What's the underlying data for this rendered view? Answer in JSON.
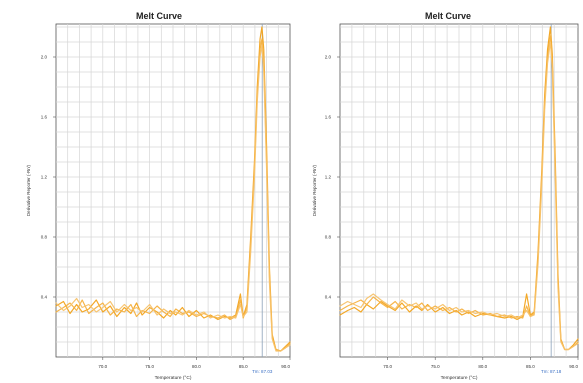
{
  "colors": {
    "curve_primary": "#f2a31b",
    "curve_light": "#f7c26a",
    "grid": "#d6d6d6",
    "axis": "#555555",
    "tm_line": "#8aa0b8",
    "tm_label": "#3a6fc4"
  },
  "chart_data": [
    {
      "type": "line",
      "title": "Melt Curve",
      "xlabel": "Temperature (°C)",
      "ylabel": "Derivative Reporter (-Rn')",
      "xlim": [
        65.0,
        90.0
      ],
      "ylim": [
        0.0,
        2.22
      ],
      "xticks": [
        70.0,
        75.0,
        80.0,
        85.0,
        90.0
      ],
      "xtick_labels": [
        "70.0",
        "75.0",
        "80.0",
        "85.0",
        "90.0"
      ],
      "yticks": [
        0.4,
        0.8,
        1.2,
        1.6,
        2.0
      ],
      "ytick_labels": [
        "0.4",
        "0.8",
        "1.2",
        "1.6",
        "2.0"
      ],
      "tm_label": "Tm: 87.03",
      "tm_value": 87.03,
      "grid": true,
      "series": [
        {
          "color": "#f2a31b",
          "x": [
            65.0,
            65.8,
            66.5,
            67.2,
            67.8,
            68.5,
            69.3,
            70.0,
            70.8,
            71.5,
            72.3,
            73.0,
            73.6,
            74.2,
            75.0,
            75.8,
            76.5,
            77.2,
            77.8,
            78.5,
            79.2,
            80.0,
            80.8,
            81.5,
            82.3,
            83.0,
            83.6,
            84.2,
            84.7,
            85.0,
            85.4,
            85.8,
            86.2,
            86.5,
            86.8,
            87.0,
            87.2,
            87.5,
            87.8,
            88.1,
            88.5,
            89.0,
            89.5,
            90.0
          ],
          "y": [
            0.34,
            0.37,
            0.29,
            0.35,
            0.3,
            0.32,
            0.38,
            0.3,
            0.34,
            0.27,
            0.33,
            0.29,
            0.36,
            0.28,
            0.33,
            0.3,
            0.26,
            0.31,
            0.28,
            0.33,
            0.27,
            0.31,
            0.26,
            0.28,
            0.25,
            0.27,
            0.26,
            0.28,
            0.42,
            0.27,
            0.35,
            0.8,
            1.3,
            1.8,
            2.12,
            2.2,
            2.05,
            1.4,
            0.6,
            0.15,
            0.05,
            0.04,
            0.07,
            0.1
          ]
        },
        {
          "color": "#f5b140",
          "x": [
            65.0,
            65.8,
            66.5,
            67.2,
            67.8,
            68.5,
            69.3,
            70.0,
            70.8,
            71.5,
            72.3,
            73.0,
            73.6,
            74.2,
            75.0,
            75.8,
            76.5,
            77.2,
            77.8,
            78.5,
            79.2,
            80.0,
            80.8,
            81.5,
            82.3,
            83.0,
            83.6,
            84.2,
            84.7,
            85.0,
            85.4,
            85.8,
            86.2,
            86.5,
            86.8,
            87.0,
            87.2,
            87.5,
            87.8,
            88.1,
            88.5,
            89.0,
            89.5,
            90.0
          ],
          "y": [
            0.3,
            0.33,
            0.36,
            0.31,
            0.38,
            0.29,
            0.33,
            0.36,
            0.28,
            0.32,
            0.3,
            0.35,
            0.27,
            0.31,
            0.29,
            0.34,
            0.3,
            0.27,
            0.32,
            0.29,
            0.3,
            0.27,
            0.29,
            0.27,
            0.26,
            0.28,
            0.25,
            0.27,
            0.38,
            0.26,
            0.33,
            0.75,
            1.25,
            1.75,
            2.05,
            2.12,
            1.95,
            1.3,
            0.55,
            0.13,
            0.05,
            0.04,
            0.06,
            0.09
          ]
        },
        {
          "color": "#f7c26a",
          "x": [
            65.0,
            65.8,
            66.5,
            67.2,
            67.8,
            68.5,
            69.3,
            70.0,
            70.8,
            71.5,
            72.3,
            73.0,
            73.6,
            74.2,
            75.0,
            75.8,
            76.5,
            77.2,
            77.8,
            78.5,
            79.2,
            80.0,
            80.8,
            81.5,
            82.3,
            83.0,
            83.6,
            84.2,
            84.7,
            85.0,
            85.4,
            85.8,
            86.2,
            86.5,
            86.8,
            87.0,
            87.2,
            87.5,
            87.8,
            88.1,
            88.5,
            89.0,
            89.5,
            90.0
          ],
          "y": [
            0.36,
            0.31,
            0.34,
            0.39,
            0.33,
            0.35,
            0.3,
            0.33,
            0.37,
            0.3,
            0.35,
            0.31,
            0.33,
            0.3,
            0.35,
            0.28,
            0.32,
            0.29,
            0.3,
            0.28,
            0.31,
            0.28,
            0.3,
            0.26,
            0.28,
            0.26,
            0.27,
            0.26,
            0.35,
            0.27,
            0.3,
            0.7,
            1.2,
            1.7,
            2.0,
            2.08,
            1.9,
            1.25,
            0.5,
            0.12,
            0.04,
            0.04,
            0.06,
            0.08
          ]
        }
      ]
    },
    {
      "type": "line",
      "title": "Melt Curve",
      "xlabel": "Temperature (°C)",
      "ylabel": "Derivative Reporter (-Rn')",
      "xlim": [
        65.0,
        90.0
      ],
      "ylim": [
        0.0,
        2.22
      ],
      "xticks": [
        70.0,
        75.0,
        80.0,
        85.0,
        90.0
      ],
      "xtick_labels": [
        "70.0",
        "75.0",
        "80.0",
        "85.0",
        "90.0"
      ],
      "yticks": [
        0.4,
        0.8,
        1.2,
        1.6,
        2.0
      ],
      "ytick_labels": [
        "0.4",
        "0.8",
        "1.2",
        "1.6",
        "2.0"
      ],
      "tm_label": "Tm: 87.18",
      "tm_value": 87.18,
      "grid": true,
      "series": [
        {
          "color": "#f2a31b",
          "x": [
            65.0,
            65.8,
            66.5,
            67.2,
            67.8,
            68.5,
            69.3,
            70.0,
            70.8,
            71.5,
            72.3,
            73.0,
            73.6,
            74.2,
            75.0,
            75.8,
            76.5,
            77.2,
            77.8,
            78.5,
            79.2,
            80.0,
            80.8,
            81.5,
            82.3,
            83.0,
            83.6,
            84.2,
            84.6,
            85.0,
            85.4,
            85.8,
            86.2,
            86.5,
            86.8,
            87.1,
            87.3,
            87.6,
            87.9,
            88.2,
            88.6,
            89.0,
            89.5,
            90.0
          ],
          "y": [
            0.28,
            0.31,
            0.33,
            0.3,
            0.35,
            0.32,
            0.37,
            0.34,
            0.31,
            0.36,
            0.3,
            0.34,
            0.31,
            0.35,
            0.3,
            0.33,
            0.29,
            0.31,
            0.28,
            0.3,
            0.27,
            0.29,
            0.28,
            0.27,
            0.26,
            0.27,
            0.25,
            0.27,
            0.42,
            0.28,
            0.3,
            0.7,
            1.25,
            1.75,
            2.05,
            2.2,
            2.02,
            1.35,
            0.55,
            0.12,
            0.05,
            0.05,
            0.08,
            0.12
          ]
        },
        {
          "color": "#f5b140",
          "x": [
            65.0,
            65.8,
            66.5,
            67.2,
            67.8,
            68.5,
            69.3,
            70.0,
            70.8,
            71.5,
            72.3,
            73.0,
            73.6,
            74.2,
            75.0,
            75.8,
            76.5,
            77.2,
            77.8,
            78.5,
            79.2,
            80.0,
            80.8,
            81.5,
            82.3,
            83.0,
            83.6,
            84.2,
            84.6,
            85.0,
            85.4,
            85.8,
            86.2,
            86.5,
            86.8,
            87.1,
            87.3,
            87.6,
            87.9,
            88.2,
            88.6,
            89.0,
            89.5,
            90.0
          ],
          "y": [
            0.31,
            0.34,
            0.36,
            0.38,
            0.35,
            0.4,
            0.36,
            0.33,
            0.37,
            0.32,
            0.35,
            0.33,
            0.36,
            0.31,
            0.34,
            0.31,
            0.33,
            0.3,
            0.32,
            0.29,
            0.31,
            0.28,
            0.29,
            0.27,
            0.28,
            0.26,
            0.27,
            0.26,
            0.34,
            0.27,
            0.29,
            0.66,
            1.2,
            1.7,
            2.0,
            2.14,
            1.96,
            1.28,
            0.5,
            0.11,
            0.05,
            0.05,
            0.07,
            0.1
          ]
        },
        {
          "color": "#f7c26a",
          "x": [
            65.0,
            65.8,
            66.5,
            67.2,
            67.8,
            68.5,
            69.3,
            70.0,
            70.8,
            71.5,
            72.3,
            73.0,
            73.6,
            74.2,
            75.0,
            75.8,
            76.5,
            77.2,
            77.8,
            78.5,
            79.2,
            80.0,
            80.8,
            81.5,
            82.3,
            83.0,
            83.6,
            84.2,
            84.6,
            85.0,
            85.4,
            85.8,
            86.2,
            86.5,
            86.8,
            87.1,
            87.3,
            87.6,
            87.9,
            88.2,
            88.6,
            89.0,
            89.5,
            90.0
          ],
          "y": [
            0.34,
            0.37,
            0.35,
            0.33,
            0.39,
            0.42,
            0.38,
            0.35,
            0.32,
            0.38,
            0.34,
            0.36,
            0.32,
            0.34,
            0.32,
            0.35,
            0.31,
            0.33,
            0.3,
            0.31,
            0.29,
            0.3,
            0.28,
            0.29,
            0.27,
            0.28,
            0.26,
            0.28,
            0.31,
            0.27,
            0.28,
            0.62,
            1.15,
            1.65,
            1.96,
            2.1,
            1.92,
            1.22,
            0.46,
            0.1,
            0.05,
            0.05,
            0.07,
            0.09
          ]
        }
      ]
    }
  ]
}
